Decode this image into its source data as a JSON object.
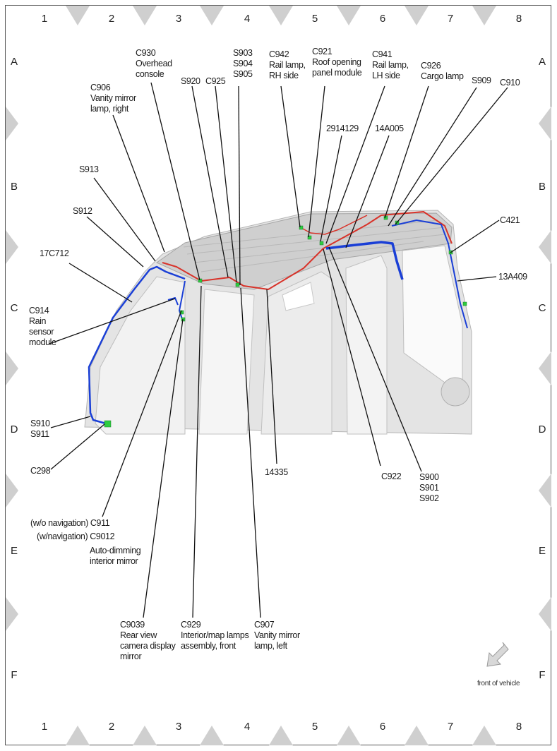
{
  "grid": {
    "columns": [
      "1",
      "2",
      "3",
      "4",
      "5",
      "6",
      "7",
      "8"
    ],
    "rows": [
      "A",
      "B",
      "C",
      "D",
      "E",
      "F"
    ]
  },
  "wire_colors": {
    "blue_harness": "#1a3fd6",
    "red_harness": "#d8332a",
    "connector": "#2ecc40"
  },
  "callouts": [
    {
      "id": "c930",
      "lines": [
        "C930",
        "Overhead",
        "console"
      ]
    },
    {
      "id": "s903",
      "lines": [
        "S903",
        "S904",
        "S905"
      ]
    },
    {
      "id": "c942",
      "lines": [
        "C942",
        "Rail lamp,",
        "RH side"
      ]
    },
    {
      "id": "c921",
      "lines": [
        "C921",
        "Roof opening",
        "panel module"
      ]
    },
    {
      "id": "c941",
      "lines": [
        "C941",
        "Rail lamp,",
        "LH side"
      ]
    },
    {
      "id": "c926",
      "lines": [
        "C926",
        "Cargo lamp"
      ]
    },
    {
      "id": "s909",
      "lines": [
        "S909"
      ]
    },
    {
      "id": "c910",
      "lines": [
        "C910"
      ]
    },
    {
      "id": "s920",
      "lines": [
        "S920"
      ]
    },
    {
      "id": "c925",
      "lines": [
        "C925"
      ]
    },
    {
      "id": "c906",
      "lines": [
        "C906",
        "Vanity mirror",
        "lamp, right"
      ]
    },
    {
      "id": "p2914129",
      "lines": [
        "2914129"
      ]
    },
    {
      "id": "p14a005",
      "lines": [
        "14A005"
      ]
    },
    {
      "id": "s913",
      "lines": [
        "S913"
      ]
    },
    {
      "id": "s912",
      "lines": [
        "S912"
      ]
    },
    {
      "id": "p17c712",
      "lines": [
        "17C712"
      ]
    },
    {
      "id": "c421",
      "lines": [
        "C421"
      ]
    },
    {
      "id": "p13a409",
      "lines": [
        "13A409"
      ]
    },
    {
      "id": "c914",
      "lines": [
        "C914",
        "Rain",
        "sensor",
        "module"
      ]
    },
    {
      "id": "s910",
      "lines": [
        "S910",
        "S911"
      ]
    },
    {
      "id": "c298",
      "lines": [
        "C298"
      ]
    },
    {
      "id": "p14335",
      "lines": [
        "14335"
      ]
    },
    {
      "id": "c922",
      "lines": [
        "C922"
      ]
    },
    {
      "id": "s900",
      "lines": [
        "S900",
        "S901",
        "S902"
      ]
    },
    {
      "id": "c911",
      "lines": [
        "(w/o navigation) C911"
      ]
    },
    {
      "id": "c9012",
      "lines": [
        "(w/navigation) C9012"
      ]
    },
    {
      "id": "autodim",
      "lines": [
        "Auto-dimming",
        "interior mirror"
      ]
    },
    {
      "id": "c9039",
      "lines": [
        "C9039",
        "Rear view",
        "camera display",
        "mirror"
      ]
    },
    {
      "id": "c929",
      "lines": [
        "C929",
        "Interior/map lamps",
        "assembly, front"
      ]
    },
    {
      "id": "c907",
      "lines": [
        "C907",
        "Vanity mirror",
        "lamp, left"
      ]
    }
  ],
  "orientation_note": "front of vehicle"
}
